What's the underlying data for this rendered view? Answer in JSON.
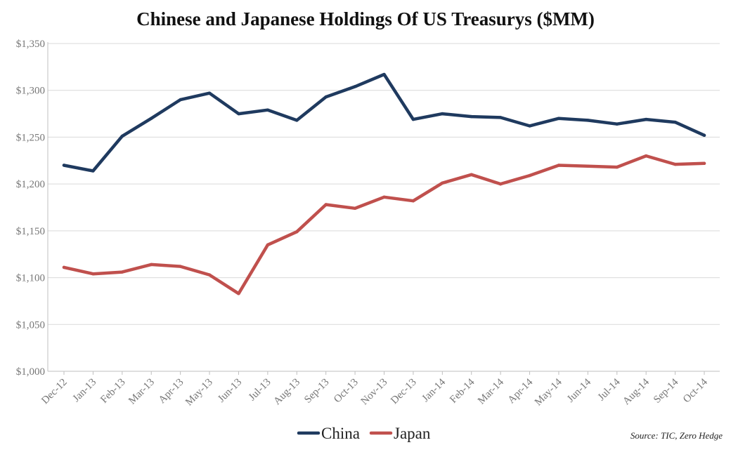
{
  "chart_data": {
    "type": "line",
    "title": "Chinese and Japanese Holdings Of US Treasurys ($MM)",
    "xlabel": "",
    "ylabel": "",
    "ylim": [
      1000,
      1350
    ],
    "yticks": [
      1000,
      1050,
      1100,
      1150,
      1200,
      1250,
      1300,
      1350
    ],
    "ytick_labels": [
      "$1,000",
      "$1,050",
      "$1,100",
      "$1,150",
      "$1,200",
      "$1,250",
      "$1,300",
      "$1,350"
    ],
    "grid": true,
    "categories": [
      "Dec-12",
      "Jan-13",
      "Feb-13",
      "Mar-13",
      "Apr-13",
      "May-13",
      "Jun-13",
      "Jul-13",
      "Aug-13",
      "Sep-13",
      "Oct-13",
      "Nov-13",
      "Dec-13",
      "Jan-14",
      "Feb-14",
      "Mar-14",
      "Apr-14",
      "May-14",
      "Jun-14",
      "Jul-14",
      "Aug-14",
      "Sep-14",
      "Oct-14"
    ],
    "series": [
      {
        "name": "China",
        "color": "#1f3a5f",
        "values": [
          1220,
          1214,
          1251,
          1270,
          1290,
          1297,
          1275,
          1279,
          1268,
          1293,
          1304,
          1317,
          1269,
          1275,
          1272,
          1271,
          1262,
          1270,
          1268,
          1264,
          1269,
          1266,
          1252
        ]
      },
      {
        "name": "Japan",
        "color": "#c0504d",
        "values": [
          1111,
          1104,
          1106,
          1114,
          1112,
          1103,
          1083,
          1135,
          1149,
          1178,
          1174,
          1186,
          1182,
          1201,
          1210,
          1200,
          1209,
          1220,
          1219,
          1218,
          1230,
          1221,
          1222
        ]
      }
    ],
    "legend_position": "bottom-center",
    "source": "Source: TIC, Zero Hedge"
  }
}
